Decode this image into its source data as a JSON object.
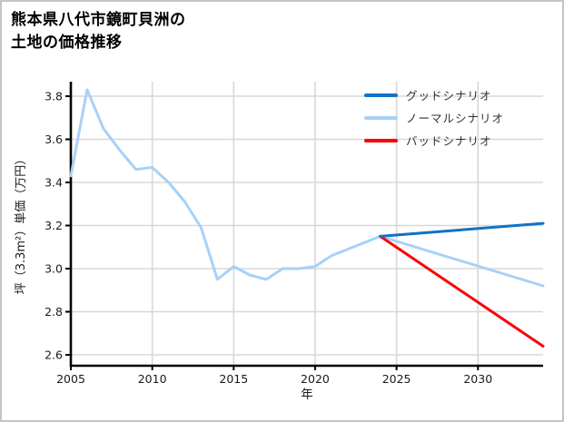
{
  "title": {
    "line1": "熊本県八代市鏡町貝洲の",
    "line2": "土地の価格推移"
  },
  "legend": [
    {
      "label": "グッドシナリオ",
      "color": "#1272c4"
    },
    {
      "label": "ノーマルシナリオ",
      "color": "#a8d1f7"
    },
    {
      "label": "バッドシナリオ",
      "color": "#fa0505"
    }
  ],
  "chart_data": {
    "type": "line",
    "title": "熊本県八代市鏡町貝洲の土地の価格推移",
    "xlabel": "年",
    "ylabel": "坪（3.3m²）単価（万円）",
    "xlim": [
      2005,
      2034
    ],
    "ylim": [
      2.55,
      3.87
    ],
    "xticks": [
      2005,
      2010,
      2015,
      2020,
      2025,
      2030
    ],
    "yticks": [
      2.6,
      2.8,
      3.0,
      3.2,
      3.4,
      3.6,
      3.8
    ],
    "grid": true,
    "legend_position": "upper right",
    "series": [
      {
        "name": "ノーマルシナリオ",
        "color": "#a8d1f7",
        "x": [
          2005,
          2006,
          2007,
          2008,
          2009,
          2010,
          2011,
          2012,
          2013,
          2014,
          2015,
          2016,
          2017,
          2018,
          2019,
          2020,
          2021,
          2022,
          2023,
          2024,
          2034
        ],
        "values": [
          3.43,
          3.83,
          3.65,
          3.55,
          3.46,
          3.47,
          3.4,
          3.31,
          3.19,
          2.95,
          3.01,
          2.97,
          2.95,
          3.0,
          3.0,
          3.01,
          3.06,
          3.09,
          3.12,
          3.15,
          2.92
        ]
      },
      {
        "name": "バッドシナリオ",
        "color": "#fa0505",
        "x": [
          2024,
          2034
        ],
        "values": [
          3.15,
          2.64
        ]
      },
      {
        "name": "グッドシナリオ",
        "color": "#1272c4",
        "x": [
          2024,
          2034
        ],
        "values": [
          3.15,
          3.21
        ]
      }
    ]
  }
}
